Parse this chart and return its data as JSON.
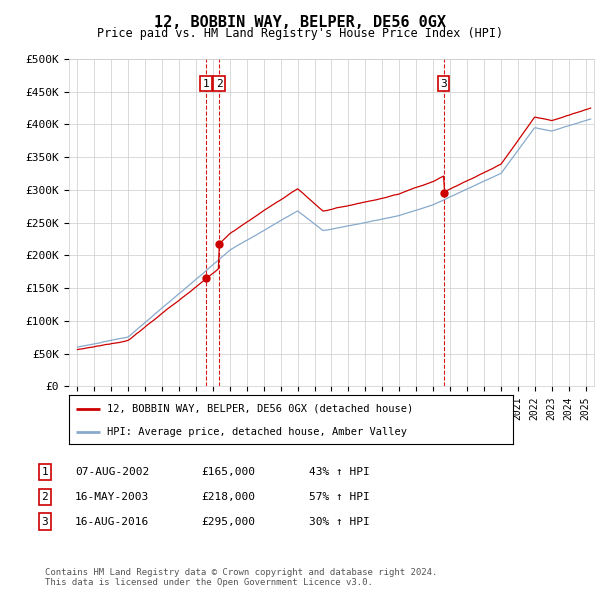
{
  "title": "12, BOBBIN WAY, BELPER, DE56 0GX",
  "subtitle": "Price paid vs. HM Land Registry's House Price Index (HPI)",
  "ylabel_ticks": [
    "£0",
    "£50K",
    "£100K",
    "£150K",
    "£200K",
    "£250K",
    "£300K",
    "£350K",
    "£400K",
    "£450K",
    "£500K"
  ],
  "ytick_values": [
    0,
    50000,
    100000,
    150000,
    200000,
    250000,
    300000,
    350000,
    400000,
    450000,
    500000
  ],
  "ylim": [
    0,
    500000
  ],
  "xlim_start": 1994.5,
  "xlim_end": 2025.5,
  "purchase_dates": [
    2002.59,
    2003.37,
    2016.62
  ],
  "purchase_prices": [
    165000,
    218000,
    295000
  ],
  "label_numbers": [
    "1",
    "2",
    "3"
  ],
  "red_color": "#cc0000",
  "blue_color": "#88aacc",
  "vline_color": "#cc0000",
  "grid_color": "#cccccc",
  "legend_label_red": "12, BOBBIN WAY, BELPER, DE56 0GX (detached house)",
  "legend_label_blue": "HPI: Average price, detached house, Amber Valley",
  "table_data": [
    [
      "1",
      "07-AUG-2002",
      "£165,000",
      "43% ↑ HPI"
    ],
    [
      "2",
      "16-MAY-2003",
      "£218,000",
      "57% ↑ HPI"
    ],
    [
      "3",
      "16-AUG-2016",
      "£295,000",
      "30% ↑ HPI"
    ]
  ],
  "footer": "Contains HM Land Registry data © Crown copyright and database right 2024.\nThis data is licensed under the Open Government Licence v3.0.",
  "background_color": "#ffffff"
}
